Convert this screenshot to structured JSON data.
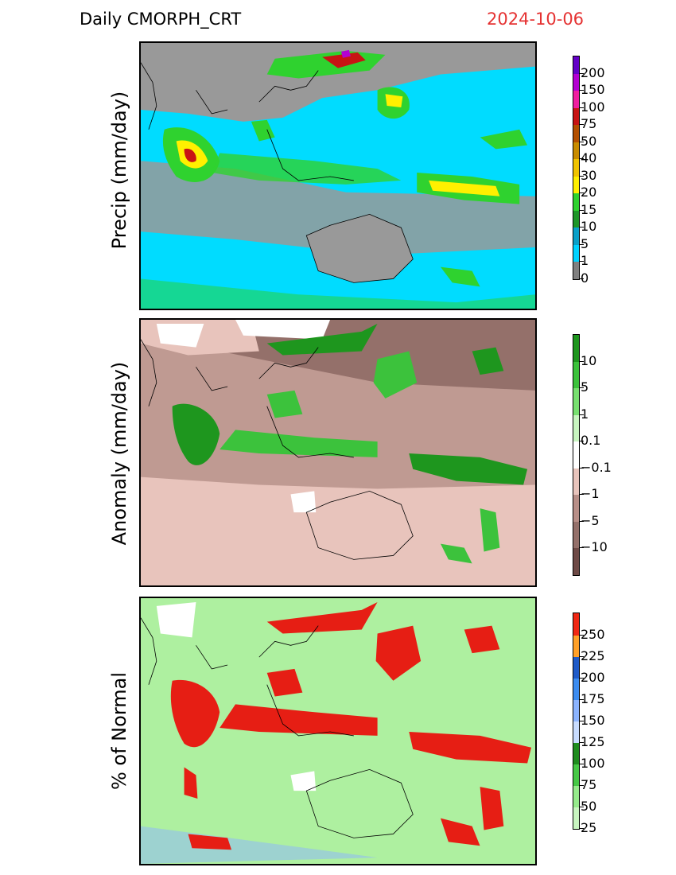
{
  "header": {
    "title": "Daily CMORPH_CRT",
    "date": "2024-10-06"
  },
  "colors": {
    "land": "#999999",
    "ocean_light": "#00dcff",
    "anomaly_base": "#bf9a92",
    "normal_base": "#aef0a0",
    "date_color": "#e53232"
  },
  "panels": [
    {
      "id": "precip",
      "ylabel": "Precip (mm/day)",
      "colorbar": {
        "colors": [
          "#808080",
          "#00d2ff",
          "#0aa0c8",
          "#1e9628",
          "#2fd22f",
          "#fff000",
          "#f0c400",
          "#c88c00",
          "#b45000",
          "#c81414",
          "#f01ea0",
          "#b400d2",
          "#6400c8"
        ],
        "labels": [
          "0",
          "1",
          "5",
          "10",
          "15",
          "20",
          "30",
          "40",
          "50",
          "75",
          "100",
          "150",
          "200"
        ]
      }
    },
    {
      "id": "anomaly",
      "ylabel": "Anomaly (mm/day)",
      "colorbar": {
        "colors": [
          "#6e4a46",
          "#94706a",
          "#b88f88",
          "#e8c4bc",
          "#ffffff",
          "#c8f5c0",
          "#78e070",
          "#3cc23c",
          "#1e961e"
        ],
        "labels": [
          "−10",
          "−5",
          "−1",
          "−0.1",
          "0.1",
          "1",
          "5",
          "10"
        ]
      }
    },
    {
      "id": "percent",
      "ylabel": "% of Normal",
      "colorbar": {
        "colors": [
          "#c8f5c0",
          "#96eb8c",
          "#46c846",
          "#1e8c1e",
          "#c8dcff",
          "#8cb4ff",
          "#3c8cf0",
          "#1e5ac8",
          "#ffa028",
          "#f02814",
          "#e61e14"
        ],
        "labels": [
          "25",
          "50",
          "75",
          "100",
          "125",
          "150",
          "175",
          "200",
          "225",
          "250"
        ]
      }
    }
  ]
}
